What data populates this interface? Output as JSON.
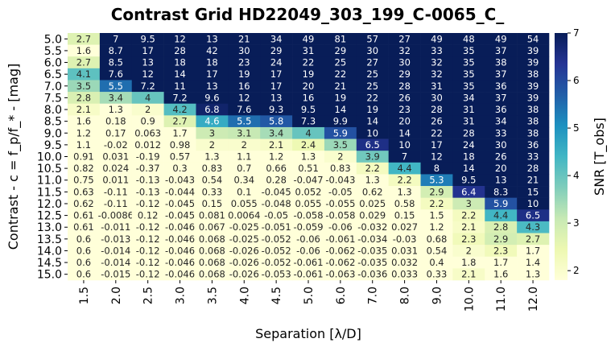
{
  "chart_data": {
    "type": "heatmap",
    "title": "Contrast Grid HD22049_303_199_C-0065_C_",
    "xlabel": "Separation [λ/D]",
    "ylabel": "Contrast - c = f_p/f_* - [mag]",
    "colorbar_label": "SNR [T_obs]",
    "colormap": "YlGnBu",
    "vmin": 1.8,
    "vmax": 7,
    "colorbar_ticks": [
      "2",
      "3",
      "4",
      "5",
      "6",
      "7"
    ],
    "x": [
      "1.5",
      "2.0",
      "2.5",
      "3.0",
      "3.5",
      "4.0",
      "4.5",
      "5.0",
      "6.0",
      "7.0",
      "8.0",
      "9.0",
      "10.0",
      "11.0",
      "12.0"
    ],
    "y": [
      "5.0",
      "5.5",
      "6.0",
      "6.5",
      "7.0",
      "7.5",
      "8.0",
      "8.5",
      "9.0",
      "9.5",
      "10.0",
      "10.5",
      "11.0",
      "11.5",
      "12.0",
      "12.5",
      "13.0",
      "13.5",
      "14.0",
      "14.5",
      "15.0"
    ],
    "values": [
      [
        2.7,
        7,
        9.5,
        12,
        13,
        21,
        34,
        49,
        81,
        57,
        27,
        49,
        48,
        49,
        54
      ],
      [
        1.6,
        8.7,
        17,
        28,
        42,
        30,
        29,
        31,
        29,
        30,
        32,
        33,
        35,
        37,
        39
      ],
      [
        2.7,
        8.5,
        13,
        18,
        18,
        23,
        24,
        22,
        25,
        27,
        30,
        32,
        35,
        38,
        39
      ],
      [
        4.1,
        7.6,
        12,
        14,
        17,
        19,
        17,
        19,
        22,
        25,
        29,
        32,
        35,
        37,
        38
      ],
      [
        3.5,
        5.5,
        7.2,
        11,
        13,
        16,
        17,
        20,
        21,
        25,
        28,
        31,
        35,
        36,
        39
      ],
      [
        2.8,
        3.4,
        4,
        7.2,
        9.6,
        12,
        13,
        16,
        19,
        22,
        26,
        30,
        34,
        37,
        39
      ],
      [
        2.1,
        1.3,
        2,
        4.2,
        6.8,
        7.6,
        9.3,
        9.5,
        14,
        19,
        23,
        28,
        31,
        36,
        38
      ],
      [
        1.6,
        0.18,
        0.9,
        2.7,
        4.6,
        5.5,
        5.8,
        7.3,
        9.9,
        14,
        20,
        26,
        31,
        34,
        38
      ],
      [
        1.2,
        0.17,
        0.063,
        1.7,
        3,
        3.1,
        3.4,
        4,
        5.9,
        10,
        14,
        22,
        28,
        33,
        38
      ],
      [
        1.1,
        -0.02,
        0.012,
        0.98,
        2,
        2,
        2.1,
        2.4,
        3.5,
        6.5,
        10,
        17,
        24,
        30,
        36
      ],
      [
        0.91,
        0.031,
        -0.19,
        0.57,
        1.3,
        1.1,
        1.2,
        1.3,
        2,
        3.9,
        7,
        12,
        18,
        26,
        33
      ],
      [
        0.82,
        0.024,
        -0.37,
        0.3,
        0.83,
        0.7,
        0.66,
        0.51,
        0.83,
        2.2,
        4.4,
        8,
        14,
        20,
        28
      ],
      [
        0.75,
        0.011,
        -0.13,
        -0.043,
        0.54,
        0.34,
        0.28,
        -0.047,
        -0.043,
        1.3,
        2.2,
        5.3,
        9.5,
        13,
        21
      ],
      [
        0.63,
        -0.11,
        -0.13,
        -0.044,
        0.33,
        0.1,
        -0.045,
        0.052,
        -0.05,
        0.62,
        1.3,
        2.9,
        6.4,
        8.3,
        15
      ],
      [
        0.62,
        -0.11,
        -0.12,
        -0.045,
        0.15,
        0.055,
        -0.048,
        0.055,
        -0.055,
        0.025,
        0.58,
        2.2,
        3,
        5.9,
        10
      ],
      [
        0.61,
        -0.0086,
        0.12,
        -0.045,
        0.081,
        0.0064,
        -0.05,
        -0.058,
        -0.058,
        0.029,
        0.15,
        1.5,
        2.2,
        4.4,
        6.5
      ],
      [
        0.61,
        -0.011,
        -0.12,
        -0.046,
        0.067,
        -0.025,
        -0.051,
        -0.059,
        -0.06,
        -0.032,
        0.027,
        1.2,
        2.1,
        2.8,
        4.3
      ],
      [
        0.6,
        -0.013,
        -0.12,
        -0.046,
        0.068,
        -0.025,
        -0.052,
        -0.06,
        -0.061,
        -0.034,
        -0.03,
        0.68,
        2.3,
        2.9,
        2.7
      ],
      [
        0.6,
        -0.014,
        -0.12,
        -0.046,
        0.068,
        -0.026,
        -0.052,
        -0.06,
        -0.062,
        -0.035,
        0.031,
        0.54,
        2,
        2.3,
        1.7
      ],
      [
        0.6,
        -0.014,
        -0.12,
        -0.046,
        0.068,
        -0.026,
        -0.052,
        -0.061,
        -0.062,
        -0.035,
        0.032,
        0.4,
        1.8,
        1.7,
        1.4
      ],
      [
        0.6,
        -0.015,
        -0.12,
        -0.046,
        0.068,
        -0.026,
        -0.053,
        -0.061,
        -0.063,
        -0.036,
        0.033,
        0.33,
        2.1,
        1.6,
        1.3
      ]
    ]
  }
}
